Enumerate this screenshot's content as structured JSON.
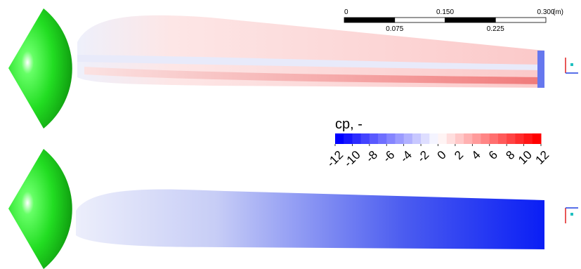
{
  "scale_bar": {
    "labels": [
      "0",
      "0.150",
      "0.300"
    ],
    "sublabels": [
      "0.075",
      "0.225"
    ],
    "unit": "(m)"
  },
  "colorbar": {
    "title": "cp, -",
    "ticks": [
      -12,
      -10,
      -8,
      -6,
      -4,
      -2,
      0,
      2,
      4,
      6,
      8,
      10,
      12
    ]
  }
}
